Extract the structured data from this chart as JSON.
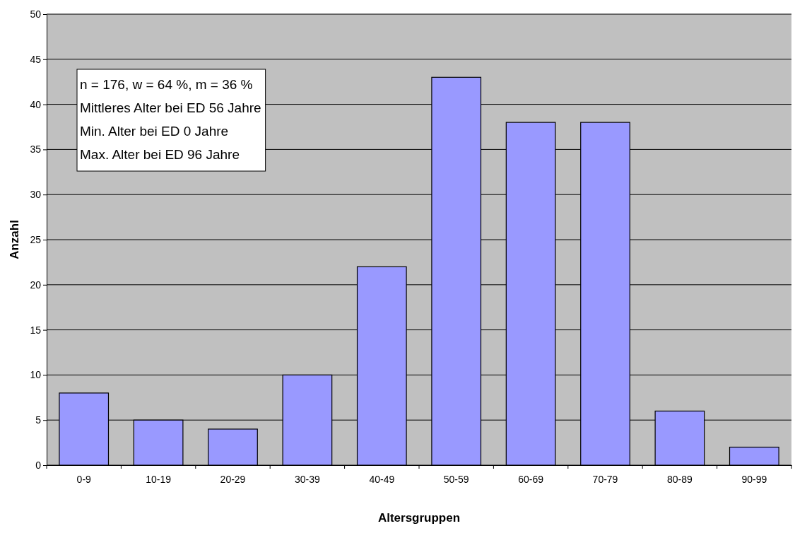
{
  "chart_data": {
    "type": "bar",
    "xlabel": "Altersgruppen",
    "ylabel": "Anzahl",
    "categories": [
      "0-9",
      "10-19",
      "20-29",
      "30-39",
      "40-49",
      "50-59",
      "60-69",
      "70-79",
      "80-89",
      "90-99"
    ],
    "values": [
      8,
      5,
      4,
      10,
      22,
      43,
      38,
      38,
      6,
      2
    ],
    "color": "#9999ff",
    "ylim": [
      0,
      50
    ],
    "yticks": [
      0,
      5,
      10,
      15,
      20,
      25,
      30,
      35,
      40,
      45,
      50
    ],
    "grid": "y",
    "annotations": [
      "n = 176, w = 64 %, m = 36 %",
      "Mittleres Alter bei ED 56 Jahre",
      "Min. Alter bei ED 0 Jahre",
      "Max. Alter bei ED 96 Jahre"
    ]
  }
}
